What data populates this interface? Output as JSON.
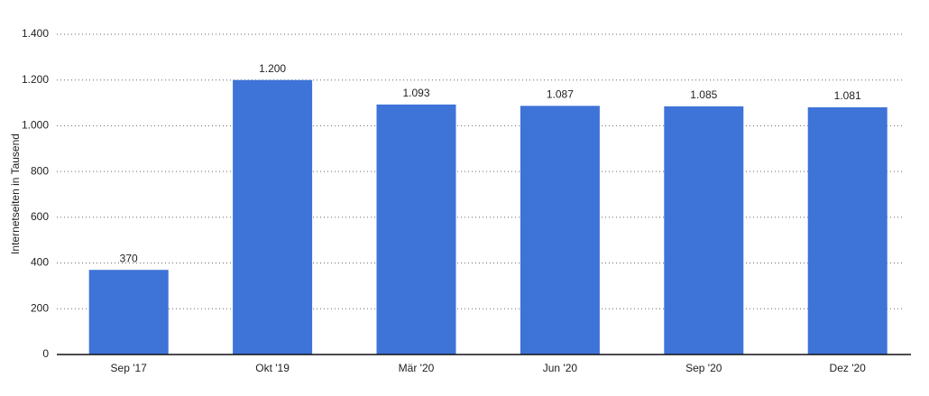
{
  "chart_data": {
    "type": "bar",
    "y_label": "Internetseiten in Tausend",
    "categories": [
      "Sep '17",
      "Okt '19",
      "Mär '20",
      "Jun '20",
      "Sep '20",
      "Dez '20"
    ],
    "values": [
      370,
      1200,
      1093,
      1087,
      1085,
      1081
    ],
    "value_labels": [
      "370",
      "1.200",
      "1.093",
      "1.087",
      "1.085",
      "1.081"
    ],
    "color": "#3e73d8",
    "ylim": [
      0,
      1400
    ],
    "yticks": [
      0,
      200,
      400,
      600,
      800,
      {
        "value": 1000,
        "label": "1.000"
      },
      {
        "value": 1200,
        "label": "1.200"
      },
      {
        "value": 1400,
        "label": "1.400"
      }
    ],
    "grid": true
  }
}
